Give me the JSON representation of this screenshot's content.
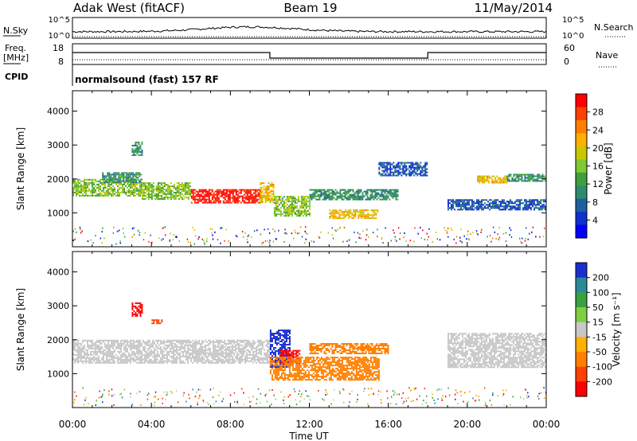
{
  "header": {
    "station": "Adak West (fitACF)",
    "beam": "Beam 19",
    "date": "11/May/2014"
  },
  "noise_panel": {
    "left_label": "N.Sky",
    "right_label": "N.Search",
    "ticks": [
      "10^5",
      "10^0"
    ]
  },
  "freq_panel": {
    "left_label_1": "Freq.",
    "left_label_2": "[MHz]",
    "right_label": "Nave",
    "left_ticks": [
      "18",
      "8"
    ],
    "right_ticks": [
      "60",
      "0"
    ]
  },
  "cpid_panel": {
    "label": "CPID",
    "program": "normalsound (fast) 157 RF"
  },
  "x_axis": {
    "label": "Time UT",
    "ticks": [
      "00:00",
      "04:00",
      "08:00",
      "12:00",
      "16:00",
      "20:00",
      "00:00"
    ]
  },
  "power_colorbar": {
    "label": "Power [dB]",
    "ticks": [
      "28",
      "24",
      "20",
      "16",
      "12",
      "8",
      "4"
    ],
    "colors": [
      "#ff0000",
      "#ff4000",
      "#ff8000",
      "#ffb000",
      "#c8c800",
      "#7fc830",
      "#3f9f3f",
      "#2e8b6e",
      "#1f5fa0",
      "#1030d0",
      "#0000ff"
    ]
  },
  "velocity_colorbar": {
    "label": "Velocity [m s⁻¹]",
    "ticks": [
      "200",
      "100",
      "50",
      "15",
      "-15",
      "-50",
      "-100",
      "-200"
    ],
    "colors": [
      "#1a2fd0",
      "#2a8a9a",
      "#3aa040",
      "#7fd040",
      "#c8c8c8",
      "#ffb000",
      "#ff8000",
      "#ff4000",
      "#ff0000"
    ]
  },
  "chart_data": [
    {
      "type": "heatmap",
      "title": "",
      "xlabel": "Time UT",
      "ylabel": "Slant Range [km]",
      "xlim": [
        0,
        24
      ],
      "ylim": [
        0,
        4600
      ],
      "y_ticks": [
        "1000",
        "2000",
        "3000",
        "4000"
      ],
      "colorbar": "Power [dB]",
      "regions": [
        {
          "t": [
            0,
            3.5
          ],
          "r": [
            1500,
            2000
          ],
          "value": 16
        },
        {
          "t": [
            1.5,
            3.5
          ],
          "r": [
            1900,
            2200
          ],
          "value": 12
        },
        {
          "t": [
            3.0,
            3.5
          ],
          "r": [
            2700,
            3100
          ],
          "value": 12
        },
        {
          "t": [
            3.5,
            6.0
          ],
          "r": [
            1400,
            1900
          ],
          "value": 16
        },
        {
          "t": [
            6.0,
            9.5
          ],
          "r": [
            1300,
            1700
          ],
          "value": 28
        },
        {
          "t": [
            9.5,
            10.2
          ],
          "r": [
            1300,
            1900
          ],
          "value": 20
        },
        {
          "t": [
            10.2,
            12.0
          ],
          "r": [
            900,
            1500
          ],
          "value": 16
        },
        {
          "t": [
            12.0,
            16.5
          ],
          "r": [
            1400,
            1700
          ],
          "value": 12
        },
        {
          "t": [
            13.0,
            15.5
          ],
          "r": [
            850,
            1100
          ],
          "value": 20
        },
        {
          "t": [
            15.5,
            18.0
          ],
          "r": [
            2100,
            2500
          ],
          "value": 8
        },
        {
          "t": [
            19.0,
            24.0
          ],
          "r": [
            1100,
            1400
          ],
          "value": 8
        },
        {
          "t": [
            20.5,
            22.0
          ],
          "r": [
            1900,
            2100
          ],
          "value": 20
        },
        {
          "t": [
            22.0,
            24.0
          ],
          "r": [
            1950,
            2150
          ],
          "value": 12
        }
      ]
    },
    {
      "type": "heatmap",
      "title": "",
      "xlabel": "Time UT",
      "ylabel": "Slant Range [km]",
      "xlim": [
        0,
        24
      ],
      "ylim": [
        0,
        4600
      ],
      "y_ticks": [
        "1000",
        "2000",
        "3000",
        "4000"
      ],
      "colorbar": "Velocity [m s⁻¹]",
      "regions": [
        {
          "t": [
            0,
            10.0
          ],
          "r": [
            1300,
            2000
          ],
          "value": 0
        },
        {
          "t": [
            3.0,
            3.5
          ],
          "r": [
            2700,
            3100
          ],
          "value": -200
        },
        {
          "t": [
            4.0,
            4.5
          ],
          "r": [
            2500,
            2600
          ],
          "value": -100
        },
        {
          "t": [
            10.0,
            11.0
          ],
          "r": [
            1200,
            2300
          ],
          "value": 200
        },
        {
          "t": [
            10.5,
            11.5
          ],
          "r": [
            1300,
            1700
          ],
          "value": -200
        },
        {
          "t": [
            10.0,
            15.5
          ],
          "r": [
            800,
            1500
          ],
          "value": -50
        },
        {
          "t": [
            12.0,
            16.0
          ],
          "r": [
            1600,
            1900
          ],
          "value": -50
        },
        {
          "t": [
            19.0,
            24.0
          ],
          "r": [
            1200,
            2200
          ],
          "value": 0
        }
      ]
    }
  ]
}
